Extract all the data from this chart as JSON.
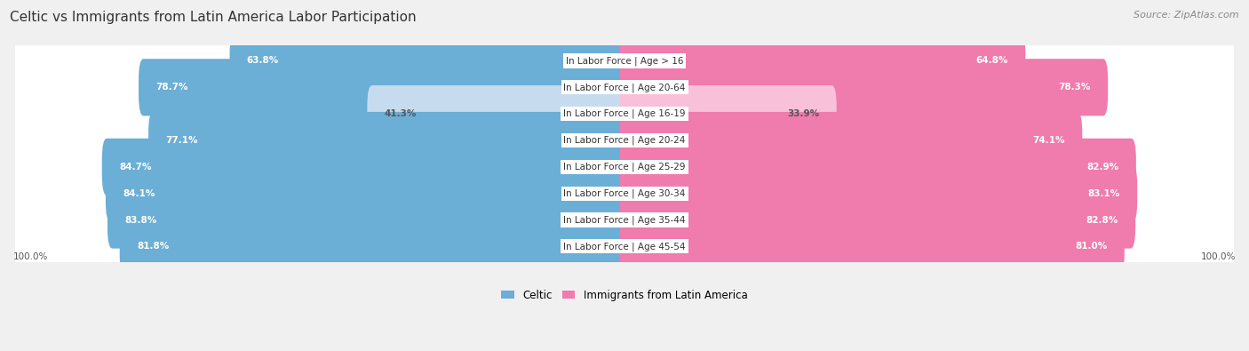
{
  "title": "Celtic vs Immigrants from Latin America Labor Participation",
  "source": "Source: ZipAtlas.com",
  "categories": [
    "In Labor Force | Age > 16",
    "In Labor Force | Age 20-64",
    "In Labor Force | Age 16-19",
    "In Labor Force | Age 20-24",
    "In Labor Force | Age 25-29",
    "In Labor Force | Age 30-34",
    "In Labor Force | Age 35-44",
    "In Labor Force | Age 45-54"
  ],
  "celtic_values": [
    63.8,
    78.7,
    41.3,
    77.1,
    84.7,
    84.1,
    83.8,
    81.8
  ],
  "immigrant_values": [
    64.8,
    78.3,
    33.9,
    74.1,
    82.9,
    83.1,
    82.8,
    81.0
  ],
  "celtic_color": "#6BAED6",
  "celtic_color_light": "#C6DCEE",
  "immigrant_color": "#F07BAD",
  "immigrant_color_light": "#F9C0D9",
  "max_value": 100.0,
  "background_color": "#f0f0f0",
  "row_bg_color": "#e8e8e8",
  "row_inner_color": "#ffffff",
  "legend_celtic": "Celtic",
  "legend_immigrant": "Immigrants from Latin America",
  "title_fontsize": 11,
  "source_fontsize": 8,
  "label_fontsize": 7.5,
  "value_fontsize": 7.5,
  "legend_fontsize": 8.5,
  "axis_label_fontsize": 7.5
}
